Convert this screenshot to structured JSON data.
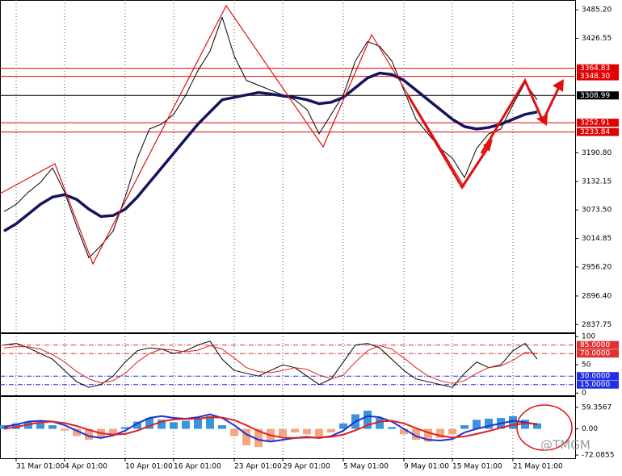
{
  "watermark": "@TMGM",
  "chart_data": [
    {
      "type": "line",
      "categories": [
        null,
        "31 Mar 01:00",
        null,
        null,
        null,
        "4 Apr 01:00",
        null,
        null,
        null,
        null,
        "10 Apr 01:00",
        null,
        null,
        null,
        "16 Apr 01:00",
        null,
        null,
        null,
        null,
        "23 Apr 01:00",
        null,
        null,
        null,
        "29 Apr 01:00",
        null,
        null,
        null,
        null,
        "5 May 01:00",
        null,
        null,
        null,
        null,
        "9 May 01:00",
        null,
        null,
        null,
        "15 May 01:00",
        null,
        null,
        null,
        null,
        "21 May 01:00",
        null,
        null
      ],
      "series": [
        {
          "color": "#000000",
          "width": 1,
          "values": [
            3070,
            3085,
            3110,
            3130,
            3160,
            3110,
            3040,
            2975,
            3000,
            3030,
            3100,
            3180,
            3240,
            3250,
            3270,
            3310,
            3360,
            3400,
            3470,
            3390,
            3340,
            3330,
            3320,
            3310,
            3300,
            3280,
            3230,
            3270,
            3310,
            3380,
            3420,
            3410,
            3380,
            3320,
            3260,
            3230,
            3200,
            3180,
            3140,
            3200,
            3230,
            3240,
            3290,
            3335,
            3300
          ]
        },
        {
          "color": "#15155e",
          "width": 3.5,
          "values": [
            3030,
            3045,
            3065,
            3085,
            3100,
            3105,
            3095,
            3075,
            3060,
            3062,
            3075,
            3100,
            3130,
            3160,
            3190,
            3220,
            3250,
            3275,
            3300,
            3305,
            3310,
            3315,
            3312,
            3308,
            3305,
            3300,
            3292,
            3295,
            3305,
            3325,
            3345,
            3355,
            3352,
            3340,
            3320,
            3300,
            3280,
            3260,
            3245,
            3240,
            3243,
            3250,
            3260,
            3270,
            3275
          ]
        }
      ],
      "ylim": [
        2821.6,
        3505.3
      ],
      "yticks": [
        {
          "value": 3485.2,
          "label": "3485.20"
        },
        3426.55,
        {
          "value": 3190.8,
          "label": "3190.80"
        },
        3132.15,
        {
          "value": 3073.5,
          "label": "3073.50"
        },
        3014.85,
        {
          "value": 2956.2,
          "label": "2956.20"
        },
        {
          "value": 2896.4,
          "label": "2896.40"
        },
        2837.75
      ],
      "levels": [
        {
          "value": 3364.83,
          "label": "3364.83",
          "color": "#e00000"
        },
        {
          "value": 3348.3,
          "label": "3348.30",
          "color": "#e00000"
        },
        {
          "value": 3308.99,
          "label": "3308.99",
          "color": "#000000"
        },
        {
          "value": 3252.91,
          "label": "3252.91",
          "color": "#e00000"
        },
        {
          "value": 3233.84,
          "label": "3233.84",
          "color": "#e00000"
        }
      ],
      "grid": true
    },
    {
      "type": "line",
      "series": [
        {
          "color": "#000000",
          "width": 1,
          "values": [
            85,
            88,
            80,
            70,
            60,
            40,
            20,
            10,
            15,
            30,
            55,
            75,
            80,
            78,
            70,
            75,
            85,
            92,
            60,
            40,
            35,
            30,
            40,
            50,
            45,
            30,
            15,
            25,
            55,
            85,
            88,
            80,
            60,
            40,
            25,
            20,
            15,
            10,
            35,
            55,
            45,
            50,
            75,
            88,
            60
          ]
        },
        {
          "color": "#e02020",
          "width": 1,
          "values": [
            80,
            82,
            82,
            78,
            68,
            55,
            38,
            25,
            18,
            22,
            35,
            55,
            70,
            78,
            76,
            73,
            76,
            84,
            78,
            62,
            45,
            38,
            36,
            40,
            45,
            42,
            32,
            25,
            32,
            55,
            75,
            84,
            78,
            62,
            45,
            30,
            22,
            17,
            22,
            35,
            45,
            48,
            58,
            72,
            70
          ]
        }
      ],
      "ylim": [
        -4,
        106
      ],
      "yticks": [
        100,
        50,
        0
      ],
      "levels": [
        {
          "value": 85,
          "label": "85.0000",
          "color": "#e03030"
        },
        {
          "value": 70,
          "label": "70.0000",
          "color": "#e03030"
        },
        {
          "value": 30,
          "label": "30.0000",
          "color": "#2030e0"
        },
        {
          "value": 15,
          "label": "15.0000",
          "color": "#2030e0"
        }
      ]
    },
    {
      "type": "bar",
      "values": [
        10,
        15,
        20,
        18,
        10,
        -5,
        -20,
        -30,
        -25,
        -15,
        5,
        20,
        30,
        25,
        18,
        22,
        30,
        35,
        10,
        -20,
        -45,
        -50,
        -35,
        -20,
        -10,
        -15,
        -25,
        -10,
        15,
        40,
        50,
        30,
        5,
        -15,
        -30,
        -35,
        -25,
        -15,
        10,
        25,
        28,
        30,
        35,
        25,
        15
      ],
      "color_positive": "#3a94dc",
      "color_negative": "#f4a582",
      "series": [
        {
          "color": "#1f2fd0",
          "width": 2,
          "values": [
            5,
            12,
            20,
            22,
            20,
            10,
            -5,
            -20,
            -25,
            -18,
            -5,
            15,
            30,
            35,
            30,
            28,
            32,
            40,
            30,
            10,
            -15,
            -30,
            -35,
            -30,
            -25,
            -22,
            -25,
            -20,
            -5,
            20,
            35,
            32,
            20,
            0,
            -20,
            -30,
            -32,
            -28,
            -10,
            0,
            8,
            15,
            22,
            18,
            12
          ]
        },
        {
          "color": "#e02020",
          "width": 2,
          "values": [
            0,
            5,
            12,
            18,
            20,
            16,
            8,
            -3,
            -12,
            -16,
            -14,
            -5,
            8,
            20,
            26,
            27,
            28,
            32,
            31,
            24,
            10,
            -6,
            -18,
            -24,
            -25,
            -24,
            -24,
            -22,
            -16,
            -4,
            10,
            20,
            22,
            15,
            2,
            -10,
            -19,
            -24,
            -21,
            -14,
            -6,
            3,
            11,
            15,
            14
          ]
        }
      ],
      "ylim": [
        -80.8,
        90
      ],
      "yticks": [
        59.3567,
        {
          "value": 0,
          "label": "0.00"
        },
        -72.0855
      ]
    }
  ]
}
